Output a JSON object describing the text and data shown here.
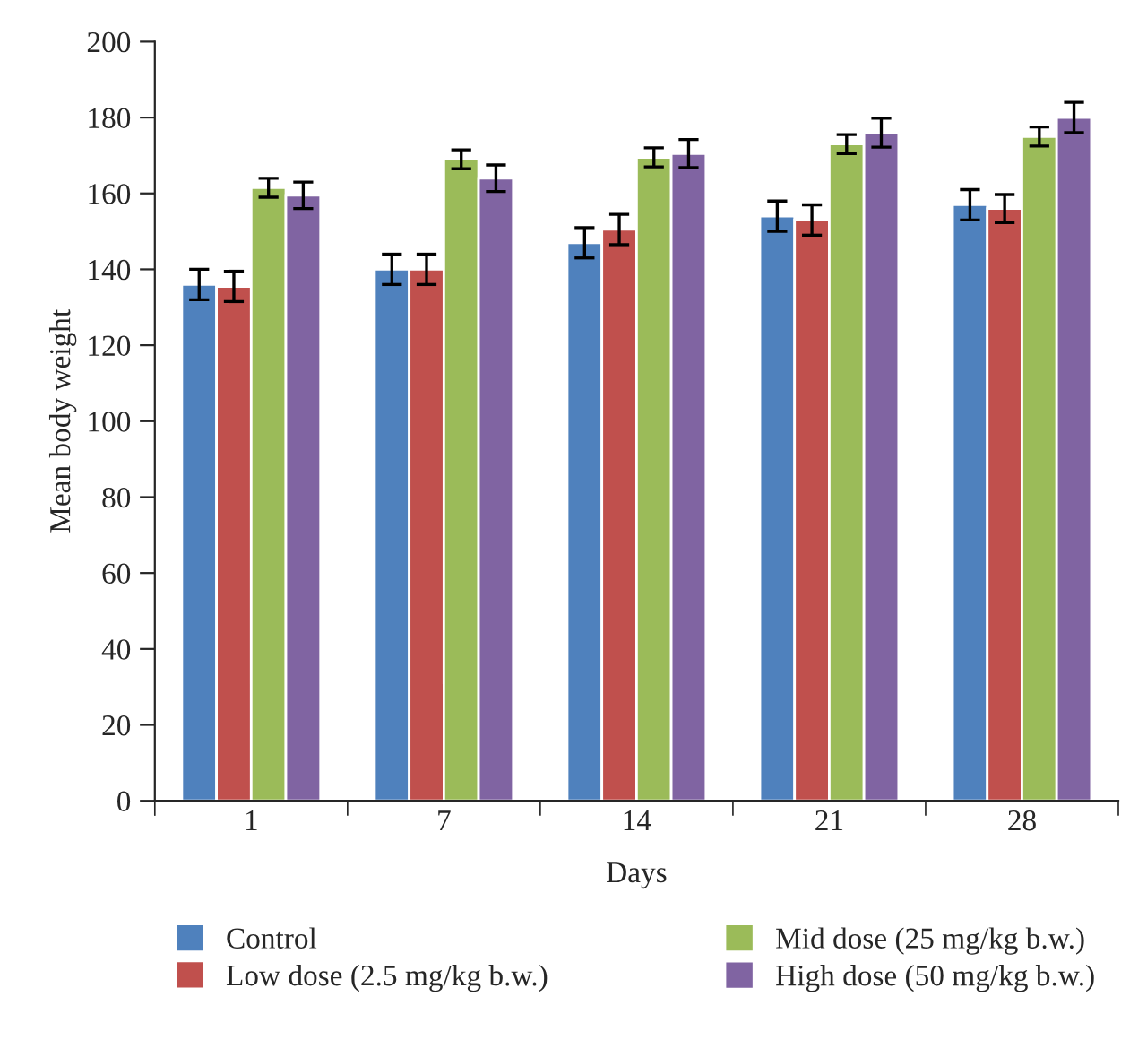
{
  "chart_data": {
    "type": "bar",
    "xlabel": "Days",
    "ylabel": "Mean body weight",
    "categories": [
      "1",
      "7",
      "14",
      "21",
      "28"
    ],
    "series": [
      {
        "name": "Control",
        "color": "#4f81bd",
        "values": [
          136,
          140,
          147,
          154,
          157
        ],
        "errors": [
          4,
          4,
          4,
          4,
          4
        ]
      },
      {
        "name": "Low dose (2.5 mg/kg b.w.)",
        "color": "#c0504d",
        "values": [
          135.5,
          140,
          150.5,
          153,
          156
        ],
        "errors": [
          4,
          4,
          4,
          4,
          3.7
        ]
      },
      {
        "name": "Mid dose (25 mg/kg b.w.)",
        "color": "#9bbb59",
        "values": [
          161.5,
          169,
          169.5,
          173,
          175
        ],
        "errors": [
          2.5,
          2.5,
          2.5,
          2.5,
          2.5
        ]
      },
      {
        "name": "High dose (50 mg/kg b.w.)",
        "color": "#8064a2",
        "values": [
          159.5,
          164,
          170.5,
          176,
          180
        ],
        "errors": [
          3.5,
          3.5,
          3.7,
          3.8,
          4
        ]
      }
    ],
    "ylim": [
      0,
      200
    ],
    "yticks": [
      0,
      20,
      40,
      60,
      80,
      100,
      120,
      140,
      160,
      180,
      200
    ],
    "grid": false,
    "legend": "bottom"
  }
}
